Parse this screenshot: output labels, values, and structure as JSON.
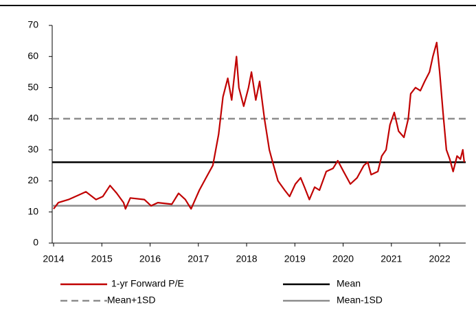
{
  "chart_data": {
    "type": "line",
    "x": [
      2014.0,
      2014.1,
      2014.31,
      2014.53,
      2014.67,
      2014.88,
      2015.02,
      2015.17,
      2015.31,
      2015.45,
      2015.49,
      2015.59,
      2015.88,
      2016.02,
      2016.16,
      2016.45,
      2016.59,
      2016.73,
      2016.85,
      2017.02,
      2017.16,
      2017.3,
      2017.42,
      2017.51,
      2017.61,
      2017.69,
      2017.79,
      2017.84,
      2017.94,
      2018.04,
      2018.1,
      2018.19,
      2018.27,
      2018.37,
      2018.47,
      2018.54,
      2018.65,
      2018.79,
      2018.89,
      2019.01,
      2019.12,
      2019.2,
      2019.3,
      2019.41,
      2019.51,
      2019.65,
      2019.79,
      2019.89,
      2020.01,
      2020.15,
      2020.29,
      2020.43,
      2020.51,
      2020.58,
      2020.72,
      2020.8,
      2020.89,
      2020.97,
      2021.06,
      2021.15,
      2021.26,
      2021.35,
      2021.4,
      2021.5,
      2021.6,
      2021.69,
      2021.79,
      2021.86,
      2021.94,
      2022.0,
      2022.07,
      2022.14,
      2022.21,
      2022.28,
      2022.36,
      2022.43,
      2022.48,
      2022.51
    ],
    "series": [
      {
        "name": "1-yr Forward P/E",
        "color": "#c00000",
        "values": [
          11,
          13,
          14,
          15.5,
          16.5,
          14,
          15,
          18.5,
          16,
          13,
          11,
          14.5,
          14,
          12,
          13,
          12.5,
          16,
          14,
          11,
          17,
          21,
          25,
          35,
          47,
          53,
          46,
          60,
          50,
          44,
          50,
          55,
          46,
          52,
          40,
          30,
          26,
          20,
          17,
          15,
          19,
          21,
          18,
          14,
          18,
          17,
          23,
          24,
          26.5,
          23,
          19,
          21,
          25,
          26,
          22,
          23,
          28,
          30,
          38,
          42,
          36,
          34,
          40,
          48,
          50,
          49,
          52,
          55,
          60,
          64.5,
          55,
          42,
          30,
          27,
          23,
          28,
          27,
          30,
          26
        ]
      }
    ],
    "reference_lines": [
      {
        "name": "Mean",
        "value": 26,
        "color": "#000000",
        "dashed": false
      },
      {
        "name": "Mean+1SD",
        "value": 40,
        "color": "#8c8c8c",
        "dashed": true
      },
      {
        "name": "Mean-1SD",
        "value": 12,
        "color": "#8c8c8c",
        "dashed": false
      }
    ],
    "xlim": [
      2014,
      2022.54
    ],
    "xticks": [
      2014,
      2015,
      2016,
      2017,
      2018,
      2019,
      2020,
      2021,
      2022
    ],
    "ylim": [
      0,
      70
    ],
    "yticks": [
      0,
      10,
      20,
      30,
      40,
      50,
      60,
      70
    ]
  }
}
